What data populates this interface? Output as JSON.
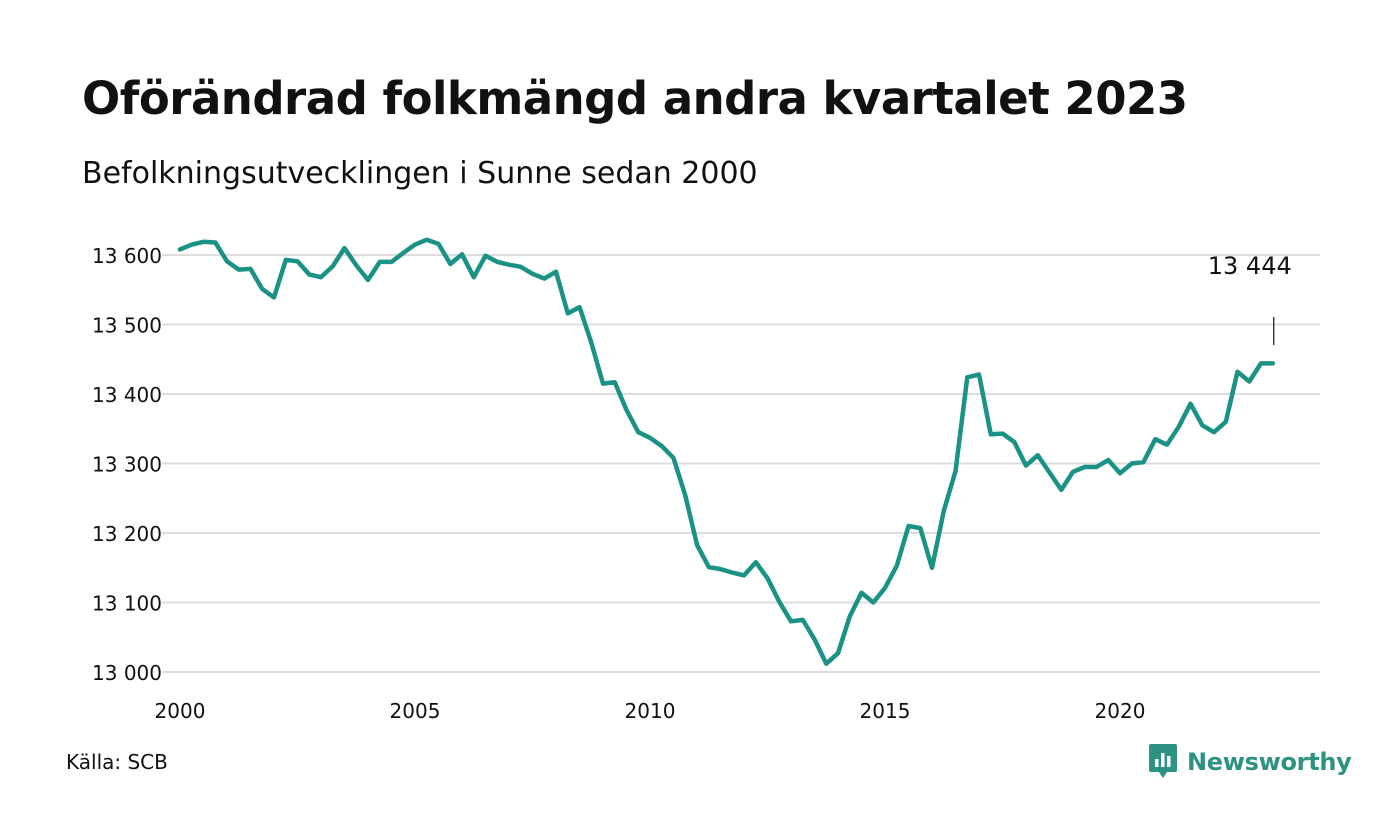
{
  "header": {
    "title": "Oförändrad folkmängd andra kvartalet 2023",
    "subtitle": "Befolkningsutvecklingen i Sunne sedan 2000"
  },
  "footer": {
    "source": "Källa: SCB",
    "brand": "Newsworthy",
    "brand_icon": "bar-chart-speech-bubble-icon"
  },
  "colors": {
    "line": "#1a9285",
    "grid": "#dddddd",
    "text": "#111111",
    "brand": "#2e9283"
  },
  "chart_data": {
    "type": "line",
    "title": "Oförändrad folkmängd andra kvartalet 2023",
    "subtitle": "Befolkningsutvecklingen i Sunne sedan 2000",
    "xlabel": "",
    "ylabel": "",
    "xlim": [
      2000,
      2024
    ],
    "ylim": [
      13000,
      13640
    ],
    "x_ticks": [
      2000,
      2005,
      2010,
      2015,
      2020
    ],
    "x_tick_labels": [
      "2000",
      "2005",
      "2010",
      "2015",
      "2020"
    ],
    "y_ticks": [
      13000,
      13100,
      13200,
      13300,
      13400,
      13500,
      13600
    ],
    "y_tick_labels": [
      "13 000",
      "13 100",
      "13 200",
      "13 300",
      "13 400",
      "13 500",
      "13 600"
    ],
    "grid": true,
    "series": [
      {
        "start_year": 2000,
        "period": "quarter",
        "values": [
          13608,
          13615,
          13619,
          13618,
          13591,
          13579,
          13580,
          13551,
          13539,
          13593,
          13591,
          13572,
          13568,
          13584,
          13610,
          13585,
          13564,
          13590,
          13590,
          13603,
          13615,
          13622,
          13616,
          13587,
          13601,
          13568,
          13599,
          13590,
          13586,
          13583,
          13573,
          13566,
          13576,
          13516,
          13525,
          13474,
          13415,
          13417,
          13377,
          13345,
          13337,
          13325,
          13308,
          13254,
          13183,
          13151,
          13148,
          13143,
          13139,
          13158,
          13135,
          13101,
          13073,
          13075,
          13047,
          13012,
          13027,
          13080,
          13114,
          13100,
          13121,
          13153,
          13210,
          13207,
          13150,
          13232,
          13289,
          13424,
          13428,
          13342,
          13343,
          13331,
          13297,
          13312,
          13287,
          13262,
          13288,
          13295,
          13295,
          13305,
          13286,
          13300,
          13302,
          13335,
          13327,
          13353,
          13386,
          13355,
          13345,
          13360,
          13432,
          13418,
          13444,
          13444
        ]
      }
    ],
    "annotations": [
      {
        "label": "13 444",
        "x": 2023.25,
        "y": 13444
      }
    ]
  }
}
